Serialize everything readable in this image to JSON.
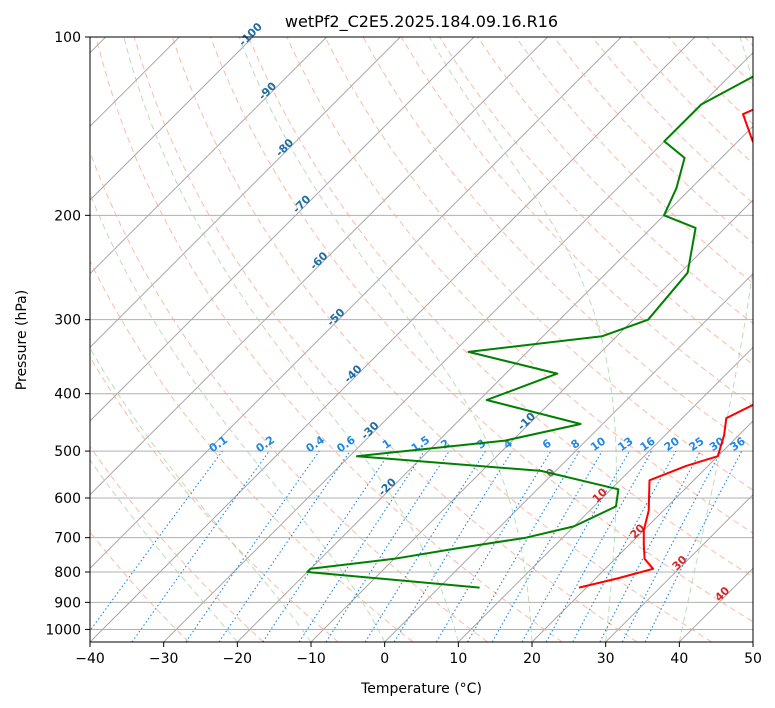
{
  "chart_data": {
    "type": "line",
    "title": "wetPf2_C2E5.2025.184.09.16.R16",
    "xlabel": "Temperature (°C)",
    "ylabel": "Pressure (hPa)",
    "xlim": [
      -40,
      50
    ],
    "ylim": [
      1050,
      100
    ],
    "y_scale": "log",
    "skew": "skew-T log-P diagram",
    "xticks": [
      -40,
      -30,
      -20,
      -10,
      0,
      10,
      20,
      30,
      40,
      50
    ],
    "yticks": [
      100,
      200,
      300,
      400,
      500,
      600,
      700,
      800,
      900,
      1000
    ],
    "grid": true,
    "isotherm_labels": [
      -100,
      -90,
      -80,
      -70,
      -60,
      -50,
      -40,
      -30,
      -20,
      -10,
      0,
      10,
      20,
      30,
      40
    ],
    "mixing_ratio_labels": [
      "0.1",
      "0.2",
      "0.4",
      "0.6",
      "1",
      "1.5",
      "2",
      "3",
      "4",
      "6",
      "8",
      "10",
      "13",
      "16",
      "20",
      "25",
      "30",
      "36"
    ],
    "series": [
      {
        "color": "#ff0000",
        "points": [
          [
            19,
            850
          ],
          [
            23,
            820
          ],
          [
            26.5,
            790
          ],
          [
            24,
            760
          ],
          [
            22,
            720
          ],
          [
            20,
            680
          ],
          [
            18,
            630
          ],
          [
            14,
            560
          ],
          [
            17,
            530
          ],
          [
            20,
            510
          ],
          [
            18,
            470
          ],
          [
            16,
            440
          ],
          [
            18.5,
            410
          ],
          [
            16.5,
            370
          ],
          [
            12,
            300
          ],
          [
            4,
            240
          ],
          [
            -4,
            200
          ],
          [
            -10,
            170
          ],
          [
            -18,
            150
          ],
          [
            -23,
            135
          ],
          [
            -18,
            120
          ],
          [
            -14,
            100
          ]
        ]
      },
      {
        "color": "#008000",
        "points": [
          [
            5.5,
            850
          ],
          [
            -20,
            800
          ],
          [
            -20,
            790
          ],
          [
            -10,
            760
          ],
          [
            -3,
            730
          ],
          [
            5,
            700
          ],
          [
            10,
            670
          ],
          [
            13,
            620
          ],
          [
            11,
            580
          ],
          [
            -2,
            540
          ],
          [
            -29,
            510
          ],
          [
            -11,
            480
          ],
          [
            -3,
            450
          ],
          [
            -19,
            410
          ],
          [
            -13,
            370
          ],
          [
            -28,
            340
          ],
          [
            -12,
            320
          ],
          [
            -8,
            300
          ],
          [
            -9,
            250
          ],
          [
            -14,
            210
          ],
          [
            -20,
            200
          ],
          [
            -22,
            180
          ],
          [
            -25,
            160
          ],
          [
            -30,
            150
          ],
          [
            -30,
            130
          ],
          [
            -25,
            110
          ],
          [
            -22,
            100
          ]
        ]
      }
    ]
  }
}
